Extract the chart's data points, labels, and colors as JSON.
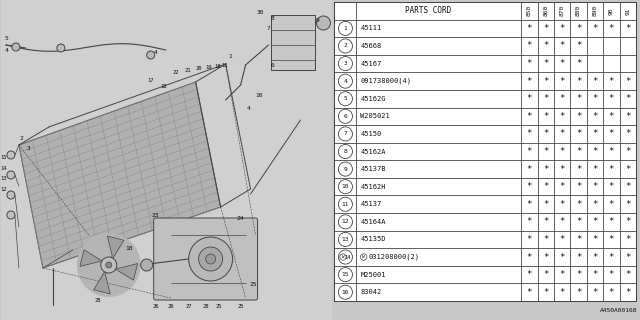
{
  "reference": "A450A00168",
  "parts": [
    {
      "num": 1,
      "code": "45111",
      "marks": [
        1,
        1,
        1,
        1,
        1,
        1,
        1
      ]
    },
    {
      "num": 2,
      "code": "45668",
      "marks": [
        1,
        1,
        1,
        1,
        0,
        0,
        0
      ]
    },
    {
      "num": 3,
      "code": "45167",
      "marks": [
        1,
        1,
        1,
        1,
        0,
        0,
        0
      ]
    },
    {
      "num": 4,
      "code": "091738000(4)",
      "marks": [
        1,
        1,
        1,
        1,
        1,
        1,
        1
      ]
    },
    {
      "num": 5,
      "code": "45162G",
      "marks": [
        1,
        1,
        1,
        1,
        1,
        1,
        1
      ]
    },
    {
      "num": 6,
      "code": "W205021",
      "marks": [
        1,
        1,
        1,
        1,
        1,
        1,
        1
      ]
    },
    {
      "num": 7,
      "code": "45150",
      "marks": [
        1,
        1,
        1,
        1,
        1,
        1,
        1
      ]
    },
    {
      "num": 8,
      "code": "45162A",
      "marks": [
        1,
        1,
        1,
        1,
        1,
        1,
        1
      ]
    },
    {
      "num": 9,
      "code": "45137B",
      "marks": [
        1,
        1,
        1,
        1,
        1,
        1,
        1
      ]
    },
    {
      "num": 10,
      "code": "45162H",
      "marks": [
        1,
        1,
        1,
        1,
        1,
        1,
        1
      ]
    },
    {
      "num": 11,
      "code": "45137",
      "marks": [
        1,
        1,
        1,
        1,
        1,
        1,
        1
      ]
    },
    {
      "num": 12,
      "code": "45164A",
      "marks": [
        1,
        1,
        1,
        1,
        1,
        1,
        1
      ]
    },
    {
      "num": 13,
      "code": "45135D",
      "marks": [
        1,
        1,
        1,
        1,
        1,
        1,
        1
      ]
    },
    {
      "num": 14,
      "code": "031208000(2)",
      "marks": [
        1,
        1,
        1,
        1,
        1,
        1,
        1
      ]
    },
    {
      "num": 15,
      "code": "M25001",
      "marks": [
        1,
        1,
        1,
        1,
        1,
        1,
        1
      ]
    },
    {
      "num": 16,
      "code": "83042",
      "marks": [
        1,
        1,
        1,
        1,
        1,
        1,
        1
      ]
    }
  ],
  "year_labels": [
    "850",
    "860",
    "870",
    "880",
    "890",
    "90",
    "91"
  ],
  "bg_color": "#c8c8c8",
  "table_bg": "#ffffff",
  "line_color": "#444444",
  "text_color": "#111111",
  "diagram_bg": "#c0c0c0"
}
